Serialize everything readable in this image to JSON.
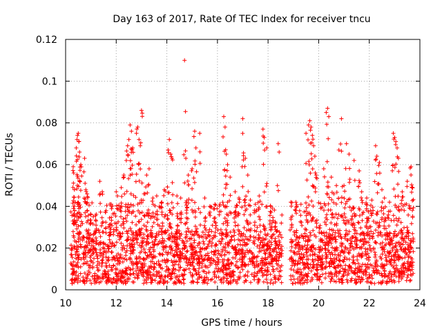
{
  "chart_data": {
    "type": "scatter",
    "title": "Day 163 of 2017, Rate Of TEC Index for receiver tncu",
    "xlabel": "GPS time / hours",
    "ylabel": "ROTI / TECUs",
    "xlim": [
      10,
      24
    ],
    "ylim": [
      0,
      0.12
    ],
    "grid": true,
    "marker": "+",
    "color": "#ff0000",
    "xticks": [
      10,
      12,
      14,
      16,
      18,
      20,
      22,
      24
    ],
    "xtick_labels": [
      "10",
      "12",
      "14",
      "16",
      "18",
      "20",
      "22",
      "24"
    ],
    "yticks": [
      0,
      0.02,
      0.04,
      0.06,
      0.08,
      0.1,
      0.12
    ],
    "ytick_labels": [
      "0",
      "0.02",
      "0.04",
      "0.06",
      "0.08",
      "0.1",
      "0.12"
    ],
    "data_range_x": [
      10.2,
      23.75
    ],
    "data_gap_x": [
      18.55,
      18.85
    ],
    "base_band_y": [
      0.003,
      0.028
    ],
    "series": [
      {
        "name": "ROTI",
        "points": [
          [
            10.3,
            0.059
          ],
          [
            10.32,
            0.056
          ],
          [
            10.35,
            0.048
          ],
          [
            10.38,
            0.042
          ],
          [
            10.42,
            0.068
          ],
          [
            10.45,
            0.072
          ],
          [
            10.47,
            0.074
          ],
          [
            10.5,
            0.075
          ],
          [
            10.52,
            0.071
          ],
          [
            10.55,
            0.066
          ],
          [
            10.6,
            0.06
          ],
          [
            10.75,
            0.063
          ],
          [
            10.8,
            0.048
          ],
          [
            10.85,
            0.046
          ],
          [
            11.0,
            0.036
          ],
          [
            11.2,
            0.033
          ],
          [
            11.35,
            0.052
          ],
          [
            11.45,
            0.047
          ],
          [
            11.6,
            0.038
          ],
          [
            11.8,
            0.041
          ],
          [
            12.0,
            0.047
          ],
          [
            12.05,
            0.045
          ],
          [
            12.2,
            0.049
          ],
          [
            12.3,
            0.055
          ],
          [
            12.4,
            0.062
          ],
          [
            12.45,
            0.069
          ],
          [
            12.5,
            0.072
          ],
          [
            12.55,
            0.079
          ],
          [
            12.6,
            0.076
          ],
          [
            12.65,
            0.068
          ],
          [
            12.8,
            0.075
          ],
          [
            12.85,
            0.078
          ],
          [
            12.9,
            0.072
          ],
          [
            12.95,
            0.069
          ],
          [
            13.0,
            0.086
          ],
          [
            13.1,
            0.046
          ],
          [
            13.2,
            0.055
          ],
          [
            13.3,
            0.058
          ],
          [
            13.45,
            0.044
          ],
          [
            13.6,
            0.045
          ],
          [
            13.8,
            0.042
          ],
          [
            13.9,
            0.048
          ],
          [
            14.05,
            0.067
          ],
          [
            14.1,
            0.072
          ],
          [
            14.15,
            0.065
          ],
          [
            14.2,
            0.063
          ],
          [
            14.4,
            0.045
          ],
          [
            14.55,
            0.044
          ],
          [
            14.7,
            0.11
          ],
          [
            14.75,
            0.063
          ],
          [
            14.85,
            0.055
          ],
          [
            15.0,
            0.058
          ],
          [
            15.1,
            0.076
          ],
          [
            15.15,
            0.068
          ],
          [
            15.3,
            0.075
          ],
          [
            15.5,
            0.044
          ],
          [
            15.7,
            0.04
          ],
          [
            15.9,
            0.041
          ],
          [
            16.1,
            0.041
          ],
          [
            16.25,
            0.083
          ],
          [
            16.3,
            0.078
          ],
          [
            16.35,
            0.065
          ],
          [
            16.4,
            0.06
          ],
          [
            16.5,
            0.054
          ],
          [
            16.7,
            0.047
          ],
          [
            16.85,
            0.044
          ],
          [
            17.0,
            0.082
          ],
          [
            17.1,
            0.063
          ],
          [
            17.2,
            0.055
          ],
          [
            17.3,
            0.043
          ],
          [
            17.5,
            0.041
          ],
          [
            17.65,
            0.045
          ],
          [
            17.8,
            0.077
          ],
          [
            17.85,
            0.073
          ],
          [
            17.95,
            0.068
          ],
          [
            18.1,
            0.04
          ],
          [
            18.3,
            0.032
          ],
          [
            18.4,
            0.07
          ],
          [
            18.9,
            0.042
          ],
          [
            19.1,
            0.042
          ],
          [
            19.3,
            0.041
          ],
          [
            19.5,
            0.075
          ],
          [
            19.6,
            0.079
          ],
          [
            19.65,
            0.081
          ],
          [
            19.7,
            0.078
          ],
          [
            19.75,
            0.074
          ],
          [
            19.8,
            0.069
          ],
          [
            19.85,
            0.064
          ],
          [
            19.9,
            0.055
          ],
          [
            20.2,
            0.058
          ],
          [
            20.3,
            0.085
          ],
          [
            20.35,
            0.087
          ],
          [
            20.4,
            0.083
          ],
          [
            20.5,
            0.054
          ],
          [
            20.6,
            0.046
          ],
          [
            20.7,
            0.05
          ],
          [
            20.8,
            0.067
          ],
          [
            20.9,
            0.082
          ],
          [
            21.0,
            0.05
          ],
          [
            21.1,
            0.07
          ],
          [
            21.2,
            0.065
          ],
          [
            21.4,
            0.062
          ],
          [
            21.6,
            0.057
          ],
          [
            21.7,
            0.047
          ],
          [
            21.9,
            0.044
          ],
          [
            22.1,
            0.043
          ],
          [
            22.25,
            0.069
          ],
          [
            22.3,
            0.064
          ],
          [
            22.4,
            0.061
          ],
          [
            22.5,
            0.048
          ],
          [
            22.6,
            0.044
          ],
          [
            22.8,
            0.042
          ],
          [
            22.95,
            0.075
          ],
          [
            23.0,
            0.073
          ],
          [
            23.05,
            0.071
          ],
          [
            23.1,
            0.068
          ],
          [
            23.15,
            0.063
          ],
          [
            23.3,
            0.047
          ],
          [
            23.5,
            0.052
          ],
          [
            23.65,
            0.059
          ],
          [
            23.7,
            0.049
          ]
        ]
      }
    ]
  }
}
